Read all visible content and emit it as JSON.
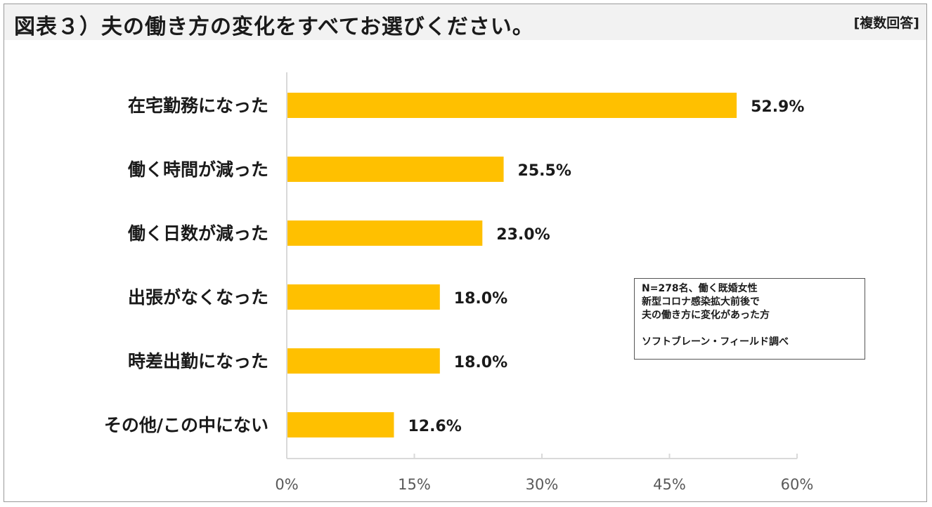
{
  "header": {
    "title": "図表３）夫の働き方の変化をすべてお選びください。",
    "tag": "[複数回答]"
  },
  "note": {
    "lines": [
      "N=278名、働く既婚女性",
      "新型コロナ感染拡大前後で",
      "夫の働き方に変化があった方",
      "",
      "ソフトブレーン・フィールド調べ"
    ]
  },
  "colors": {
    "bar": "#FFC000",
    "axis": "#d9d9d9",
    "tick_text": "#595959",
    "text": "#1a1a1a"
  },
  "chart_data": {
    "type": "bar",
    "orientation": "horizontal",
    "categories": [
      "在宅勤務になった",
      "働く時間が減った",
      "働く日数が減った",
      "出張がなくなった",
      "時差出勤になった",
      "その他/この中にない"
    ],
    "values": [
      52.9,
      25.5,
      23.0,
      18.0,
      18.0,
      12.6
    ],
    "value_labels": [
      "52.9%",
      "25.5%",
      "23.0%",
      "18.0%",
      "18.0%",
      "12.6%"
    ],
    "xlim": [
      0,
      60
    ],
    "xticks": [
      0,
      15,
      30,
      45,
      60
    ],
    "xtick_labels": [
      "0%",
      "15%",
      "30%",
      "45%",
      "60%"
    ],
    "grid": false
  }
}
